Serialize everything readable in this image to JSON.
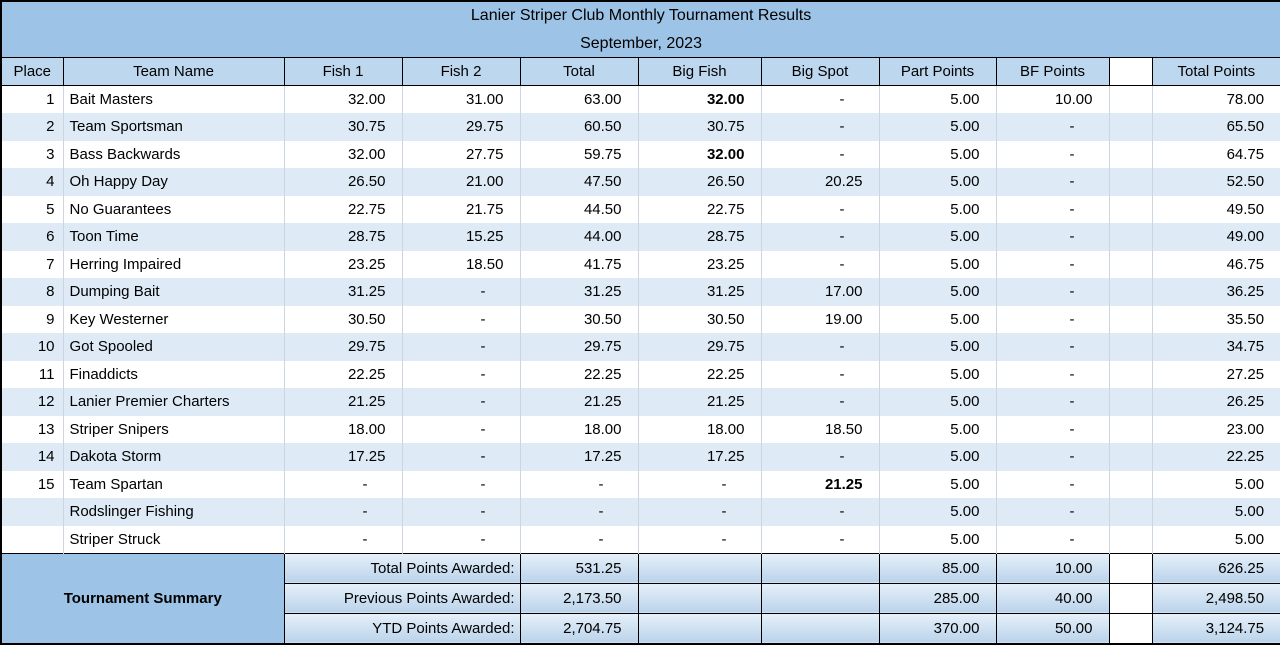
{
  "title": "Lanier Striper Club Monthly Tournament Results",
  "subtitle": "September, 2023",
  "columns": [
    "Place",
    "Team Name",
    "Fish 1",
    "Fish 2",
    "Total",
    "Big Fish",
    "Big Spot",
    "Part Points",
    "BF Points",
    "",
    "Total Points"
  ],
  "rows": [
    [
      "1",
      "Bait Masters",
      "32.00",
      "31.00",
      "63.00",
      "32.00",
      "-",
      "5.00",
      "10.00",
      "",
      "78.00"
    ],
    [
      "2",
      "Team Sportsman",
      "30.75",
      "29.75",
      "60.50",
      "30.75",
      "-",
      "5.00",
      "-",
      "",
      "65.50"
    ],
    [
      "3",
      "Bass Backwards",
      "32.00",
      "27.75",
      "59.75",
      "32.00",
      "-",
      "5.00",
      "-",
      "",
      "64.75"
    ],
    [
      "4",
      "Oh Happy Day",
      "26.50",
      "21.00",
      "47.50",
      "26.50",
      "20.25",
      "5.00",
      "-",
      "",
      "52.50"
    ],
    [
      "5",
      "No Guarantees",
      "22.75",
      "21.75",
      "44.50",
      "22.75",
      "-",
      "5.00",
      "-",
      "",
      "49.50"
    ],
    [
      "6",
      "Toon Time",
      "28.75",
      "15.25",
      "44.00",
      "28.75",
      "-",
      "5.00",
      "-",
      "",
      "49.00"
    ],
    [
      "7",
      "Herring Impaired",
      "23.25",
      "18.50",
      "41.75",
      "23.25",
      "-",
      "5.00",
      "-",
      "",
      "46.75"
    ],
    [
      "8",
      "Dumping Bait",
      "31.25",
      "-",
      "31.25",
      "31.25",
      "17.00",
      "5.00",
      "-",
      "",
      "36.25"
    ],
    [
      "9",
      "Key Westerner",
      "30.50",
      "-",
      "30.50",
      "30.50",
      "19.00",
      "5.00",
      "-",
      "",
      "35.50"
    ],
    [
      "10",
      "Got Spooled",
      "29.75",
      "-",
      "29.75",
      "29.75",
      "-",
      "5.00",
      "-",
      "",
      "34.75"
    ],
    [
      "11",
      "Finaddicts",
      "22.25",
      "-",
      "22.25",
      "22.25",
      "-",
      "5.00",
      "-",
      "",
      "27.25"
    ],
    [
      "12",
      "Lanier Premier Charters",
      "21.25",
      "-",
      "21.25",
      "21.25",
      "-",
      "5.00",
      "-",
      "",
      "26.25"
    ],
    [
      "13",
      "Striper Snipers",
      "18.00",
      "-",
      "18.00",
      "18.00",
      "18.50",
      "5.00",
      "-",
      "",
      "23.00"
    ],
    [
      "14",
      "Dakota Storm",
      "17.25",
      "-",
      "17.25",
      "17.25",
      "-",
      "5.00",
      "-",
      "",
      "22.25"
    ],
    [
      "15",
      "Team Spartan",
      "-",
      "-",
      "-",
      "-",
      "21.25",
      "5.00",
      "-",
      "",
      "5.00"
    ],
    [
      "",
      "Rodslinger Fishing",
      "-",
      "-",
      "-",
      "-",
      "-",
      "5.00",
      "-",
      "",
      "5.00"
    ],
    [
      "",
      "Striper Struck",
      "-",
      "-",
      "-",
      "-",
      "-",
      "5.00",
      "-",
      "",
      "5.00"
    ]
  ],
  "bold_cells": [
    [
      0,
      5
    ],
    [
      2,
      5
    ],
    [
      14,
      6
    ]
  ],
  "summary": {
    "label": "Tournament Summary",
    "rows": [
      {
        "label": "Total Points Awarded:",
        "total": "531.25",
        "part_points": "85.00",
        "bf_points": "10.00",
        "total_points": "626.25"
      },
      {
        "label": "Previous Points Awarded:",
        "total": "2,173.50",
        "part_points": "285.00",
        "bf_points": "40.00",
        "total_points": "2,498.50"
      },
      {
        "label": "YTD Points Awarded:",
        "total": "2,704.75",
        "part_points": "370.00",
        "bf_points": "50.00",
        "total_points": "3,124.75"
      }
    ]
  },
  "colors": {
    "title_band": "#9DC3E6",
    "header_fill": "#BDD7EE",
    "band_fill": "#DEEBF7",
    "summary_gradient_top": "#E6F0F9",
    "summary_gradient_bottom": "#BAD3EA",
    "grid_line": "#CDD6DF",
    "border": "#000000"
  }
}
